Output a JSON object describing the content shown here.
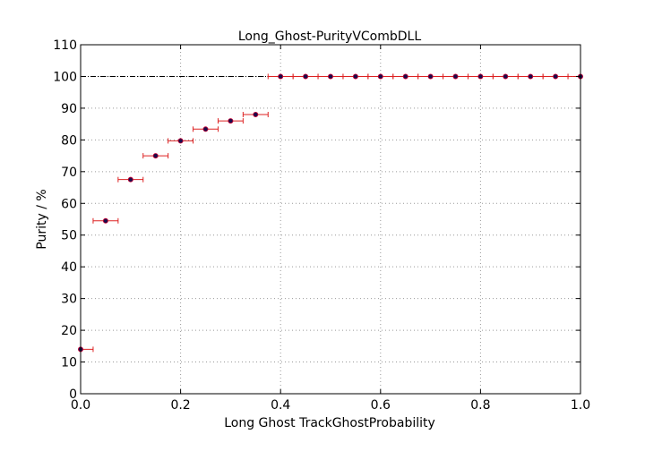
{
  "chart_data": {
    "type": "scatter",
    "title": "Long_Ghost-PurityVCombDLL",
    "xlabel": "Long Ghost TrackGhostProbability",
    "ylabel": "Purity / %",
    "xlim": [
      0.0,
      1.0
    ],
    "ylim": [
      0,
      110
    ],
    "xticks": [
      "0.0",
      "0.2",
      "0.4",
      "0.6",
      "0.8",
      "1.0"
    ],
    "yticks": [
      "0",
      "10",
      "20",
      "30",
      "40",
      "50",
      "60",
      "70",
      "80",
      "90",
      "100",
      "110"
    ],
    "grid": true,
    "reference_line": 100,
    "x_error": 0.025,
    "points": [
      {
        "x": 0.0,
        "y": 14.0
      },
      {
        "x": 0.05,
        "y": 54.5
      },
      {
        "x": 0.1,
        "y": 67.5
      },
      {
        "x": 0.15,
        "y": 75.0
      },
      {
        "x": 0.2,
        "y": 79.7
      },
      {
        "x": 0.25,
        "y": 83.4
      },
      {
        "x": 0.3,
        "y": 86.0
      },
      {
        "x": 0.35,
        "y": 88.0
      },
      {
        "x": 0.4,
        "y": 100
      },
      {
        "x": 0.45,
        "y": 100
      },
      {
        "x": 0.5,
        "y": 100
      },
      {
        "x": 0.55,
        "y": 100
      },
      {
        "x": 0.6,
        "y": 100
      },
      {
        "x": 0.65,
        "y": 100
      },
      {
        "x": 0.7,
        "y": 100
      },
      {
        "x": 0.75,
        "y": 100
      },
      {
        "x": 0.8,
        "y": 100
      },
      {
        "x": 0.85,
        "y": 100
      },
      {
        "x": 0.9,
        "y": 100
      },
      {
        "x": 0.95,
        "y": 100
      },
      {
        "x": 1.0,
        "y": 100
      }
    ],
    "colors": {
      "marker_fill": "#1a0a4a",
      "marker_edge": "#cc0033",
      "errorbar": "#dd2222",
      "grid": "#999999",
      "reference_line": "#000000"
    }
  }
}
